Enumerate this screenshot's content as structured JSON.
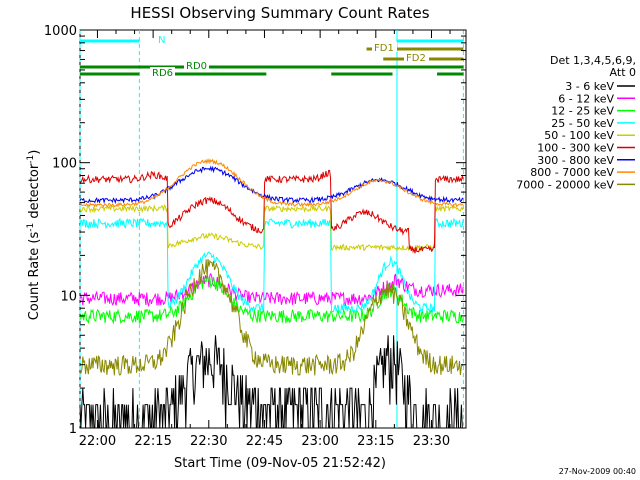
{
  "chart_data": {
    "type": "line",
    "title": "HESSI Observing Summary Count Rates",
    "xlabel": "Start Time (09-Nov-05 21:52:42)",
    "ylabel_main": "Count Rate (s",
    "ylabel_sup1": "-1",
    "ylabel_mid": " detector",
    "ylabel_sup2": "-1",
    "ylabel_end": ")",
    "yscale": "log",
    "ylim": [
      1,
      1000
    ],
    "xlim_minutes": [
      -4.7,
      99.3
    ],
    "x_ticks": [
      {
        "label": "22:00",
        "minutes": 0
      },
      {
        "label": "22:15",
        "minutes": 15
      },
      {
        "label": "22:30",
        "minutes": 30
      },
      {
        "label": "22:45",
        "minutes": 45
      },
      {
        "label": "23:00",
        "minutes": 60
      },
      {
        "label": "23:15",
        "minutes": 75
      },
      {
        "label": "23:30",
        "minutes": 90
      }
    ],
    "y_ticks": [
      {
        "label": "1",
        "value": 1
      },
      {
        "label": "10",
        "value": 10
      },
      {
        "label": "100",
        "value": 100
      },
      {
        "label": "1000",
        "value": 1000
      }
    ],
    "legend_header": [
      "Det 1,3,4,5,6,9,",
      "Att 0"
    ],
    "legend_placement": "right",
    "footer": "27-Nov-2009 00:40",
    "night_lines_minutes": [
      -4.7,
      11.3,
      80.7,
      98.6
    ],
    "saa_lines_minutes": [],
    "series": [
      {
        "name": "3 - 6 keV",
        "color": "#000000"
      },
      {
        "name": "6 - 12 keV",
        "color": "#ff00ff"
      },
      {
        "name": "12 - 25 keV",
        "color": "#00ff00"
      },
      {
        "name": "25 - 50 keV",
        "color": "#00ffff"
      },
      {
        "name": "50 - 100 keV",
        "color": "#cccc00"
      },
      {
        "name": "100 - 300 keV",
        "color": "#dd0000"
      },
      {
        "name": "300 - 800 keV",
        "color": "#0000ee"
      },
      {
        "name": "800 - 7000 keV",
        "color": "#ff8800"
      },
      {
        "name": "7000 - 20000 keV",
        "color": "#888800"
      }
    ],
    "flags": [
      {
        "label": "N",
        "color": "#00ffff",
        "segments": [
          [
            -4.7,
            11.3
          ],
          [
            80.7,
            98.6
          ]
        ]
      },
      {
        "label": "FD1",
        "color": "#888800",
        "segments": [
          [
            72.5,
            98.6
          ]
        ]
      },
      {
        "label": "FD2",
        "color": "#888800",
        "segments": [
          [
            77.0,
            98.6
          ]
        ]
      },
      {
        "label": "RD0",
        "color": "#008800",
        "segments": [
          [
            -4.7,
            98.6
          ]
        ]
      },
      {
        "label": "RD6",
        "color": "#008800",
        "segments": [
          [
            -4.7,
            11.3
          ],
          [
            19.5,
            45.5
          ],
          [
            63.0,
            79.5
          ],
          [
            91.5,
            98.6
          ]
        ]
      }
    ]
  }
}
